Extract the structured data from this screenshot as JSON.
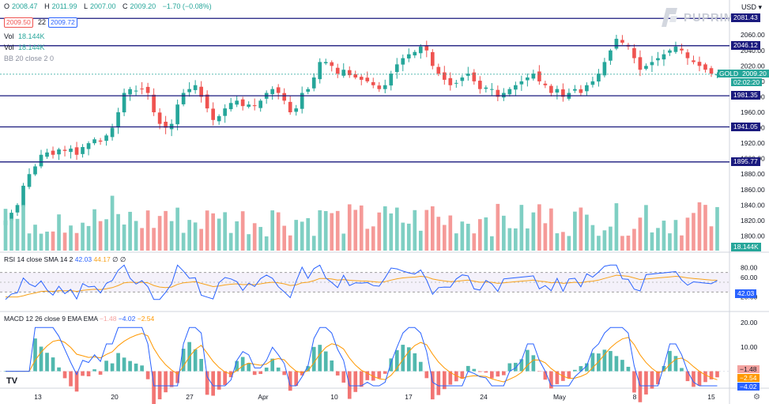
{
  "header": {
    "ohlc": [
      {
        "k": "O",
        "v": "2008.47"
      },
      {
        "k": "H",
        "v": "2011.99"
      },
      {
        "k": "L",
        "v": "2007.00"
      },
      {
        "k": "C",
        "v": "2009.20"
      },
      {
        "k": "",
        "v": "−1.70 (−0.08%)"
      }
    ],
    "bid": "2009.50",
    "spread": "22",
    "ask": "2009.72",
    "vol_label": "Vol",
    "vol_value": "18.144K",
    "vol_value2": "18.144K",
    "bb_label": "BB 20 close 2 0",
    "currency": "USD",
    "logo_text": "PUPRIME"
  },
  "price_labels": [
    {
      "text": "2081.43",
      "value": 2081.43
    },
    {
      "text": "2046.12",
      "value": 2046.12
    },
    {
      "text": "1981.35",
      "value": 1981.35
    },
    {
      "text": "1941.05",
      "value": 1941.05
    },
    {
      "text": "1895.77",
      "value": 1895.77
    }
  ],
  "current_price": {
    "symbol": "GOLD",
    "price": "2009.20",
    "countdown": "02:02:20",
    "value": 2009.2
  },
  "volume_label": "18.144K",
  "rsi": {
    "label": "RSI 14 close SMA 14 2",
    "v1": "42.03",
    "v2": "44.17",
    "v3": "∅",
    "v4": "∅",
    "ticks": [
      "80.00",
      "60.00",
      "20.00"
    ],
    "value_tag": "42.03"
  },
  "macd": {
    "label": "MACD 12 26 close 9 EMA EMA",
    "hist": "−1.48",
    "macd": "−4.02",
    "signal": "−2.54",
    "ticks": [
      "20.00",
      "10.00"
    ],
    "tags": [
      "−1.48",
      "−2.54",
      "−4.02"
    ]
  },
  "colors": {
    "up": "#26a69a",
    "down": "#ef5350",
    "level": "#1a1a7e",
    "rsi": "#2962ff",
    "rsi_ma": "#f7a21b",
    "macd": "#2962ff",
    "signal": "#ff9800"
  },
  "chart_data": {
    "type": "candlestick",
    "x_tick_labels": [
      "13",
      "20",
      "27",
      "Apr",
      "10",
      "17",
      "24",
      "May",
      "8",
      "15"
    ],
    "y_ticks": [
      2060,
      2040,
      2020,
      2000,
      1980,
      1960,
      1940,
      1920,
      1900,
      1880,
      1860,
      1840,
      1820,
      1800
    ],
    "ylim": [
      1780,
      2095
    ],
    "horizontal_levels": [
      2081.43,
      2046.12,
      1981.35,
      1941.05,
      1895.77
    ],
    "closes": [
      1820,
      1830,
      1840,
      1865,
      1880,
      1890,
      1905,
      1908,
      1905,
      1912,
      1910,
      1913,
      1905,
      1915,
      1920,
      1925,
      1922,
      1930,
      1940,
      1960,
      1985,
      1990,
      1988,
      1990,
      1985,
      1960,
      1945,
      1940,
      1945,
      1970,
      1985,
      1990,
      1995,
      1980,
      1965,
      1950,
      1955,
      1965,
      1972,
      1975,
      1968,
      1970,
      1968,
      1975,
      1985,
      1990,
      1985,
      1975,
      1960,
      1965,
      1985,
      1990,
      2005,
      2025,
      2025,
      2020,
      2010,
      2015,
      2008,
      2005,
      2002,
      2000,
      1995,
      1990,
      1995,
      2010,
      2022,
      2030,
      2035,
      2038,
      2045,
      2040,
      2020,
      2010,
      2002,
      1995,
      1998,
      2005,
      2010,
      2000,
      1990,
      1992,
      1990,
      1980,
      1985,
      1990,
      1995,
      2000,
      2005,
      2010,
      2000,
      1995,
      1985,
      1990,
      1980,
      1985,
      1990,
      1985,
      1995,
      2000,
      2010,
      2025,
      2040,
      2055,
      2050,
      2045,
      2030,
      2015,
      2020,
      2025,
      2030,
      2035,
      2040,
      2045,
      2040,
      2030,
      2025,
      2020,
      2015,
      2010,
      2009.2
    ]
  }
}
